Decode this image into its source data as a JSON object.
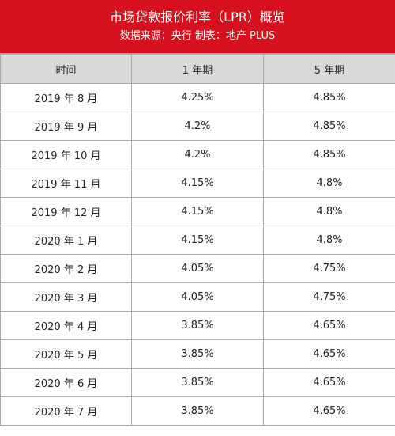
{
  "header": {
    "title": "市场贷款报价利率（LPR）概览",
    "subtitle": "数据来源：央行 制表：地产 PLUS",
    "accent_color": "#d7101d"
  },
  "table": {
    "columns": [
      "时间",
      "1 年期",
      "5 年期"
    ],
    "rows": [
      {
        "time": "2019 年 8 月",
        "one_year": "4.25%",
        "five_year": "4.85%"
      },
      {
        "time": "2019 年 9 月",
        "one_year": "4.2%",
        "five_year": "4.85%"
      },
      {
        "time": "2019 年 10 月",
        "one_year": "4.2%",
        "five_year": "4.85%"
      },
      {
        "time": "2019 年 11 月",
        "one_year": "4.15%",
        "five_year": "4.8%"
      },
      {
        "time": "2019 年 12 月",
        "one_year": "4.15%",
        "five_year": "4.8%"
      },
      {
        "time": "2020 年 1 月",
        "one_year": "4.15%",
        "five_year": "4.8%"
      },
      {
        "time": "2020 年 2 月",
        "one_year": "4.05%",
        "five_year": "4.75%"
      },
      {
        "time": "2020 年 3 月",
        "one_year": "4.05%",
        "five_year": "4.75%"
      },
      {
        "time": "2020 年 4 月",
        "one_year": "3.85%",
        "five_year": "4.65%"
      },
      {
        "time": "2020 年 5 月",
        "one_year": "3.85%",
        "five_year": "4.65%"
      },
      {
        "time": "2020 年 6 月",
        "one_year": "3.85%",
        "five_year": "4.65%"
      },
      {
        "time": "2020 年 7 月",
        "one_year": "3.85%",
        "five_year": "4.65%"
      }
    ]
  }
}
